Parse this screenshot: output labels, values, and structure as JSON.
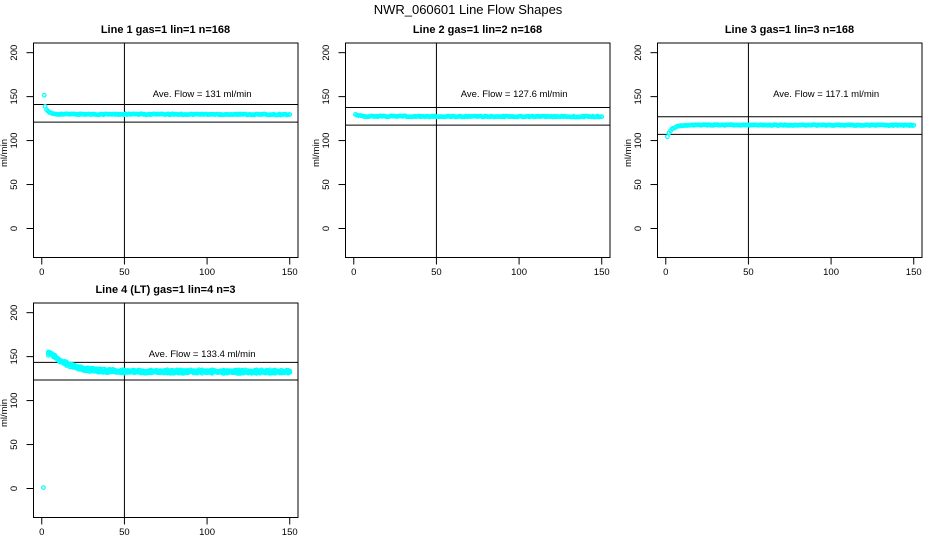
{
  "title": "NWR_060601  Line Flow Shapes",
  "colors": {
    "marker": "#00FFFF",
    "axis": "#000000",
    "background": "#FFFFFF"
  },
  "chart_data": {
    "type": "scatter",
    "marker": "open-circle",
    "shared_axes": {
      "xlim": [
        -5,
        155
      ],
      "ylim": [
        -33,
        211
      ],
      "xticks": [
        0,
        50,
        100,
        150
      ],
      "yticks": [
        0,
        50,
        100,
        150,
        200
      ],
      "ylabel": "ml/min",
      "xlabel": "",
      "grid": false,
      "vline_x": 50
    },
    "panels": [
      {
        "title": "Line 1 gas=1 lin=1 n=168",
        "n": 168,
        "ave_flow": 131,
        "ave_flow_text": "Ave. Flow =  131  ml/min",
        "ref_lines": [
          141,
          121
        ],
        "outliers": [
          [
            1.5,
            151.5
          ]
        ],
        "profile": [
          [
            2,
            139.5
          ],
          [
            3,
            134.8
          ],
          [
            4,
            132.6
          ],
          [
            5,
            131.4
          ],
          [
            7,
            130.5
          ],
          [
            10,
            130.1
          ],
          [
            20,
            130.0
          ],
          [
            40,
            129.9
          ],
          [
            80,
            129.9
          ],
          [
            120,
            129.8
          ],
          [
            150,
            129.6
          ]
        ],
        "noise": 0.55,
        "series_offsets": [
          0
        ]
      },
      {
        "title": "Line 2 gas=1 lin=2 n=168",
        "n": 168,
        "ave_flow": 127.6,
        "ave_flow_text": "Ave. Flow =  127.6  ml/min",
        "ref_lines": [
          137.6,
          117.6
        ],
        "outliers": [],
        "profile": [
          [
            1,
            130.2
          ],
          [
            2,
            128.8
          ],
          [
            3,
            128.2
          ],
          [
            5,
            127.8
          ],
          [
            10,
            127.6
          ],
          [
            30,
            127.5
          ],
          [
            60,
            127.4
          ],
          [
            100,
            127.3
          ],
          [
            150,
            127.2
          ]
        ],
        "noise": 0.55,
        "series_offsets": [
          0
        ]
      },
      {
        "title": "Line 3 gas=1 lin=3 n=168",
        "n": 168,
        "ave_flow": 117.1,
        "ave_flow_text": "Ave. Flow =  117.1  ml/min",
        "ref_lines": [
          127.1,
          107.1
        ],
        "outliers": [
          [
            1,
            104.5
          ]
        ],
        "profile": [
          [
            2,
            108.5
          ],
          [
            3,
            111.5
          ],
          [
            4,
            113.5
          ],
          [
            5,
            114.8
          ],
          [
            7,
            116.0
          ],
          [
            9,
            116.8
          ],
          [
            12,
            117.3
          ],
          [
            20,
            117.7
          ],
          [
            50,
            117.7
          ],
          [
            100,
            117.6
          ],
          [
            150,
            117.5
          ]
        ],
        "noise": 0.5,
        "series_offsets": [
          0
        ]
      },
      {
        "title": "Line 4 (LT) gas=1 lin=4 n=3",
        "n": 147,
        "ave_flow": 133.4,
        "ave_flow_text": "Ave. Flow =  133.4  ml/min",
        "ref_lines": [
          143.4,
          123.4
        ],
        "outliers": [
          [
            1,
            1
          ]
        ],
        "profile": [
          [
            4,
            153.5
          ],
          [
            5,
            153.8
          ],
          [
            6,
            152.8
          ],
          [
            7,
            151.3
          ],
          [
            8,
            149.8
          ],
          [
            10,
            147.0
          ],
          [
            12,
            144.6
          ],
          [
            15,
            141.8
          ],
          [
            18,
            139.6
          ],
          [
            22,
            137.4
          ],
          [
            26,
            135.8
          ],
          [
            30,
            134.8
          ],
          [
            36,
            134.0
          ],
          [
            42,
            133.5
          ],
          [
            50,
            133.2
          ],
          [
            70,
            133.0
          ],
          [
            100,
            133.0
          ],
          [
            130,
            132.9
          ],
          [
            150,
            132.7
          ]
        ],
        "noise": 1.0,
        "series_offsets": [
          -1.1,
          0,
          1.1
        ]
      }
    ]
  }
}
